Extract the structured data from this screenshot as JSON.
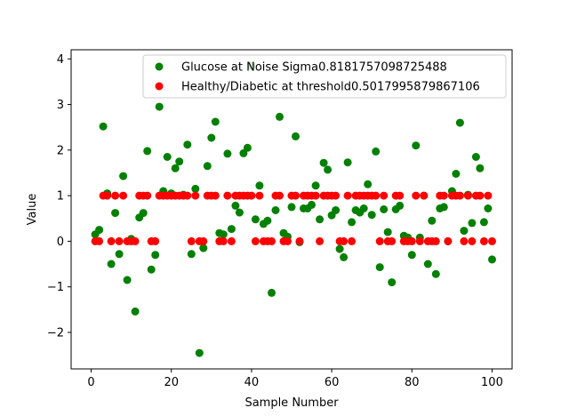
{
  "chart_data": {
    "type": "scatter",
    "title": "",
    "xlabel": "Sample Number",
    "ylabel": "Value",
    "xlim": [
      -5,
      105
    ],
    "ylim": [
      -2.8,
      4.2
    ],
    "xticks": [
      0,
      20,
      40,
      60,
      80,
      100
    ],
    "yticks": [
      -2,
      -1,
      0,
      1,
      2,
      3,
      4
    ],
    "grid": false,
    "legend_placement": "top-right",
    "series": [
      {
        "name": "Glucose at Noise Sigma0.8181757098725488",
        "color": "#008000",
        "x": [
          1,
          2,
          3,
          4,
          5,
          6,
          7,
          8,
          9,
          10,
          11,
          12,
          13,
          14,
          15,
          16,
          17,
          18,
          19,
          20,
          21,
          22,
          23,
          24,
          25,
          26,
          27,
          28,
          29,
          30,
          31,
          32,
          33,
          34,
          35,
          36,
          37,
          38,
          39,
          40,
          41,
          42,
          43,
          44,
          45,
          46,
          47,
          48,
          49,
          50,
          51,
          52,
          53,
          54,
          55,
          56,
          57,
          58,
          59,
          60,
          61,
          62,
          63,
          64,
          65,
          66,
          67,
          68,
          69,
          70,
          71,
          72,
          73,
          74,
          75,
          76,
          77,
          78,
          79,
          80,
          81,
          82,
          83,
          84,
          85,
          86,
          87,
          88,
          89,
          90,
          91,
          92,
          93,
          94,
          95,
          96,
          97,
          98,
          99,
          100
        ],
        "y": [
          0.15,
          0.25,
          2.52,
          1.05,
          -0.5,
          0.62,
          -0.28,
          1.43,
          -0.85,
          0.05,
          -1.54,
          0.52,
          0.62,
          1.98,
          -0.62,
          -0.3,
          2.95,
          1.1,
          1.85,
          1.05,
          1.6,
          1.75,
          1.02,
          2.12,
          -0.28,
          1.15,
          -2.45,
          -0.15,
          1.65,
          2.27,
          2.62,
          0.18,
          0.15,
          1.92,
          0.27,
          0.78,
          0.63,
          1.93,
          2.05,
          3.85,
          0.48,
          1.22,
          0.38,
          0.45,
          -1.13,
          0.68,
          2.73,
          0.18,
          0.1,
          0.75,
          2.3,
          -0.02,
          0.72,
          0.72,
          0.8,
          1.22,
          0.48,
          1.72,
          1.57,
          0.57,
          0.68,
          -0.17,
          -0.35,
          1.73,
          0.42,
          0.68,
          0.63,
          0.72,
          1.25,
          0.58,
          1.97,
          -0.57,
          0.7,
          0.2,
          -0.9,
          0.7,
          0.78,
          0.12,
          0.08,
          -0.3,
          2.1,
          0.08,
          1.0,
          -0.5,
          0.45,
          -0.72,
          0.72,
          0.75,
          0.0,
          1.1,
          1.48,
          2.6,
          0.23,
          1.02,
          0.4,
          1.85,
          1.6,
          0.42,
          0.72,
          -0.4
        ]
      },
      {
        "name": "Healthy/Diabetic at threshold0.5017995879867106",
        "color": "#ff0000",
        "x": [
          1,
          2,
          3,
          4,
          5,
          6,
          7,
          8,
          9,
          10,
          11,
          12,
          13,
          14,
          15,
          16,
          17,
          18,
          19,
          20,
          21,
          22,
          23,
          24,
          25,
          26,
          27,
          28,
          29,
          30,
          31,
          32,
          33,
          34,
          35,
          36,
          37,
          38,
          39,
          40,
          41,
          42,
          43,
          44,
          45,
          46,
          47,
          48,
          49,
          50,
          51,
          52,
          53,
          54,
          55,
          56,
          57,
          58,
          59,
          60,
          61,
          62,
          63,
          64,
          65,
          66,
          67,
          68,
          69,
          70,
          71,
          72,
          73,
          74,
          75,
          76,
          77,
          78,
          79,
          80,
          81,
          82,
          83,
          84,
          85,
          86,
          87,
          88,
          89,
          90,
          91,
          92,
          93,
          94,
          95,
          96,
          97,
          98,
          99,
          100
        ],
        "y": [
          0,
          0,
          1,
          1,
          0,
          1,
          0,
          1,
          0,
          0,
          0,
          1,
          1,
          1,
          0,
          0,
          1,
          1,
          1,
          1,
          1,
          1,
          1,
          1,
          0,
          1,
          0,
          0,
          1,
          1,
          1,
          0,
          0,
          1,
          0,
          1,
          1,
          1,
          1,
          1,
          0,
          1,
          0,
          0,
          0,
          1,
          1,
          0,
          0,
          1,
          1,
          0,
          1,
          1,
          1,
          1,
          0,
          1,
          1,
          1,
          1,
          0,
          0,
          1,
          0,
          1,
          1,
          1,
          1,
          1,
          1,
          0,
          1,
          0,
          0,
          1,
          1,
          0,
          0,
          0,
          1,
          0,
          1,
          0,
          0,
          0,
          1,
          1,
          0,
          1,
          1,
          1,
          0,
          1,
          0,
          1,
          1,
          0,
          1,
          0
        ]
      }
    ]
  }
}
